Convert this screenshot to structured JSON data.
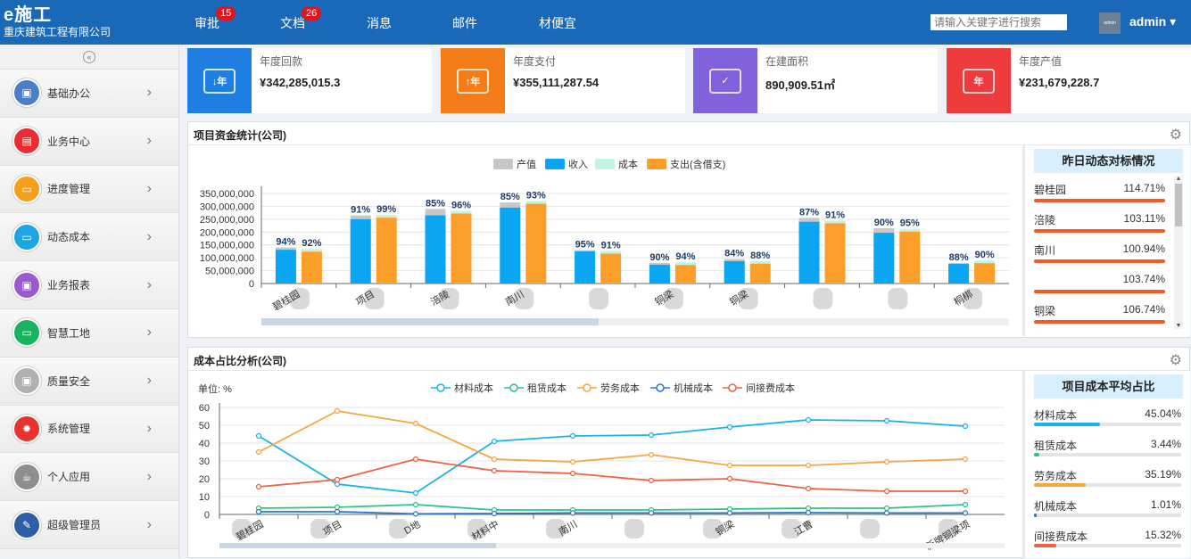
{
  "app": {
    "logo": "e施工",
    "company": "重庆建筑工程有限公司"
  },
  "nav": [
    {
      "label": "审批",
      "badge": "15"
    },
    {
      "label": "文档",
      "badge": "26"
    },
    {
      "label": "消息",
      "badge": ""
    },
    {
      "label": "邮件",
      "badge": ""
    },
    {
      "label": "材便宜",
      "badge": ""
    }
  ],
  "search": {
    "placeholder": "请输入关键字进行搜索"
  },
  "user": {
    "name": "admin ▾",
    "avatar_text": "admin"
  },
  "sidebar": [
    {
      "label": "基础办公",
      "color": "#4a7ec7",
      "icon": "briefcase-icon"
    },
    {
      "label": "业务中心",
      "color": "#ec2c32",
      "icon": "document-icon"
    },
    {
      "label": "进度管理",
      "color": "#f5a01a",
      "icon": "folder-icon"
    },
    {
      "label": "动态成本",
      "color": "#1ba6e3",
      "icon": "folder-icon"
    },
    {
      "label": "业务报表",
      "color": "#9b59d0",
      "icon": "briefcase-icon"
    },
    {
      "label": "智慧工地",
      "color": "#17b35e",
      "icon": "folder-icon"
    },
    {
      "label": "质量安全",
      "color": "#b0b0b0",
      "icon": "briefcase-icon"
    },
    {
      "label": "系统管理",
      "color": "#e8332f",
      "icon": "gear-icon"
    },
    {
      "label": "个人应用",
      "color": "#8e8e8e",
      "icon": "cup-icon"
    },
    {
      "label": "超级管理员",
      "color": "#2f5ea8",
      "icon": "wrench-icon"
    }
  ],
  "cards": [
    {
      "title": "年度回款",
      "value": "¥342,285,015.3",
      "color": "#1e7fe0",
      "icon_text": "↓年"
    },
    {
      "title": "年度支付",
      "value": "¥355,111,287.54",
      "color": "#f57d19",
      "icon_text": "↑年"
    },
    {
      "title": "在建面积",
      "value": "890,909.51㎡",
      "color": "#8162dd",
      "icon_text": "✓"
    },
    {
      "title": "年度产值",
      "value": "¥231,679,228.7",
      "color": "#ee3b3b",
      "icon_text": "年"
    }
  ],
  "panel1": {
    "title": "项目资金统计(公司)",
    "side_title": "昨日动态对标情况"
  },
  "panel2": {
    "title": "成本占比分析(公司)",
    "side_title": "项目成本平均占比",
    "unit": "单位: %"
  },
  "chart_data": [
    {
      "type": "bar",
      "categories": [
        "碧桂园",
        "项目",
        "涪陵",
        "南川",
        "",
        "铜梁",
        "铜梁",
        "",
        "",
        "桐梆"
      ],
      "series": [
        {
          "name": "产值",
          "color": "#c8c8c8",
          "values": [
            140000000,
            265000000,
            290000000,
            315000000,
            130000000,
            80000000,
            95000000,
            255000000,
            215000000,
            80000000
          ]
        },
        {
          "name": "收入",
          "color": "#0aa6f2",
          "values": [
            131000000,
            250000000,
            265000000,
            295000000,
            125000000,
            73000000,
            87000000,
            240000000,
            197000000,
            76000000
          ]
        },
        {
          "name": "成本",
          "color": "#c3f3e3",
          "values": [
            0,
            0,
            0,
            0,
            0,
            0,
            0,
            0,
            0,
            0
          ]
        },
        {
          "name": "支出(含借支)",
          "color": "#fb9e2a",
          "values": [
            124000000,
            256000000,
            272000000,
            310000000,
            116000000,
            72000000,
            77000000,
            234000000,
            202000000,
            79000000
          ]
        }
      ],
      "labels_left": [
        "94%",
        "91%",
        "85%",
        "85%",
        "95%",
        "90%",
        "84%",
        "87%",
        "90%",
        "88%"
      ],
      "labels_right": [
        "92%",
        "99%",
        "96%",
        "93%",
        "91%",
        "94%",
        "88%",
        "91%",
        "95%",
        "90%"
      ],
      "yticks": [
        "0",
        "50,000,000",
        "100,000,000",
        "150,000,000",
        "200,000,000",
        "250,000,000",
        "300,000,000",
        "350,000,000"
      ],
      "ylim": [
        0,
        350000000
      ]
    },
    {
      "type": "line",
      "categories": [
        "碧桂园",
        "项目",
        "D地",
        "材料中",
        "南川",
        "",
        "铜梁",
        "江曹",
        "",
        "新牌铜梁项"
      ],
      "series": [
        {
          "name": "材料成本",
          "color": "#1ab3e8",
          "values": [
            44,
            17,
            12,
            41,
            44,
            44.5,
            49,
            53,
            52.5,
            49.5
          ]
        },
        {
          "name": "租赁成本",
          "color": "#2bc48a",
          "values": [
            3.5,
            4,
            5.5,
            2.5,
            2.5,
            2.5,
            3,
            3.5,
            3.5,
            5.5
          ]
        },
        {
          "name": "劳务成本",
          "color": "#f5a640",
          "values": [
            35,
            58,
            51,
            31,
            29.5,
            33.5,
            27.5,
            27.5,
            29.5,
            31
          ]
        },
        {
          "name": "机械成本",
          "color": "#2e75c9",
          "values": [
            1.5,
            1.5,
            0.3,
            0.5,
            0.8,
            0.8,
            0.8,
            1,
            0.8,
            0.8
          ]
        },
        {
          "name": "间接费成本",
          "color": "#ec6243",
          "values": [
            15.5,
            19.5,
            31,
            24.5,
            23,
            19,
            20,
            14.5,
            13,
            13
          ]
        }
      ],
      "yticks": [
        "0",
        "10",
        "20",
        "30",
        "40",
        "50",
        "60"
      ],
      "ylim": [
        0,
        60
      ]
    }
  ],
  "benchmark": [
    {
      "name": "碧桂园",
      "pct": "114.71%",
      "frac": 1.0
    },
    {
      "name": "涪陵",
      "pct": "103.11%",
      "frac": 1.0
    },
    {
      "name": "南川",
      "pct": "100.94%",
      "frac": 1.0
    },
    {
      "name": "",
      "pct": "103.74%",
      "frac": 1.0
    },
    {
      "name": "铜梁",
      "pct": "106.74%",
      "frac": 1.0
    }
  ],
  "cost_share": [
    {
      "name": "材料成本",
      "pct": "45.04%",
      "frac": 0.4504,
      "color": "#1ab3e8"
    },
    {
      "name": "租赁成本",
      "pct": "3.44%",
      "frac": 0.0344,
      "color": "#2bc48a"
    },
    {
      "name": "劳务成本",
      "pct": "35.19%",
      "frac": 0.3519,
      "color": "#f5a640"
    },
    {
      "name": "机械成本",
      "pct": "1.01%",
      "frac": 0.0101,
      "color": "#2e75c9"
    },
    {
      "name": "间接费成本",
      "pct": "15.32%",
      "frac": 0.1532,
      "color": "#ec6243"
    }
  ]
}
